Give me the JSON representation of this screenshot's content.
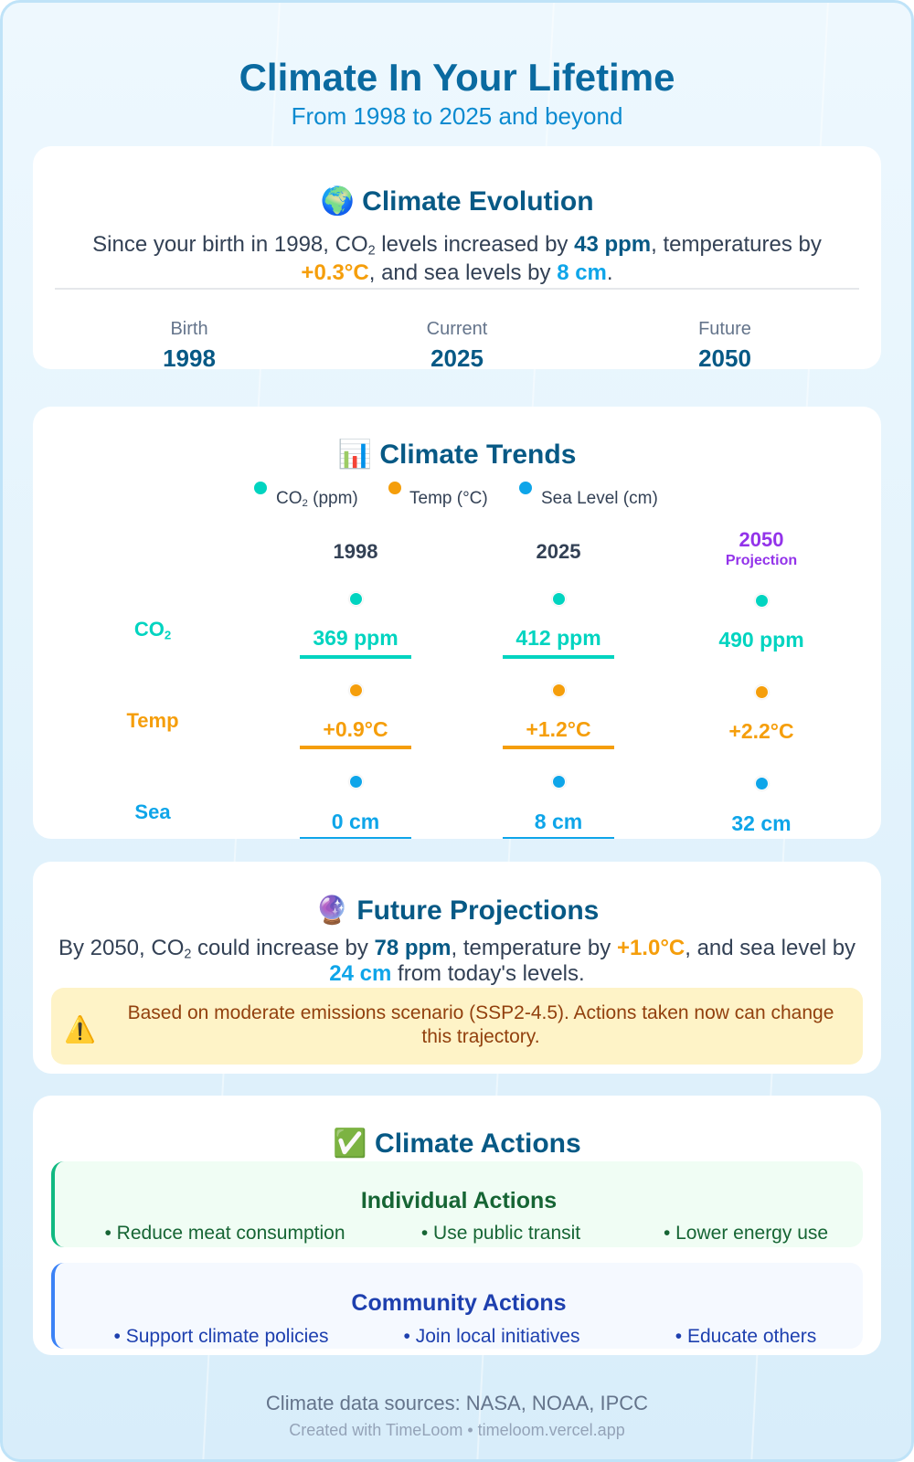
{
  "header": {
    "title": "Climate In Your Lifetime",
    "subtitle": "From 1998 to 2025 and beyond"
  },
  "evolution": {
    "icon": "globe-icon",
    "title": "Climate Evolution",
    "text_pre": "Since your birth in 1998, CO",
    "sub": "2",
    "text_mid1": " levels increased by ",
    "co2_delta": "43 ppm",
    "text_mid2": ", temperatures by ",
    "temp_delta": "+0.3°C",
    "text_mid3": ", and sea levels by ",
    "sea_delta": "8 cm",
    "text_end": ".",
    "milestones": [
      {
        "label": "Birth",
        "year": "1998"
      },
      {
        "label": "Current",
        "year": "2025"
      },
      {
        "label": "Future",
        "year": "2050"
      }
    ]
  },
  "trends": {
    "icon": "bar-chart-icon",
    "title": "Climate Trends",
    "legend": [
      {
        "label": "CO",
        "sub": "2",
        "suffix": " (ppm)",
        "color": "#00d4c0"
      },
      {
        "label": "Temp (°C)",
        "color": "#f59e0b"
      },
      {
        "label": "Sea Level (cm)",
        "color": "#0ea5e9"
      }
    ],
    "years": [
      "1998",
      "2025",
      "2050"
    ],
    "projection_label": "Projection",
    "rows": [
      {
        "label": "CO",
        "sub": "2",
        "color": "#00d4c0",
        "values": [
          "369 ppm",
          "412 ppm",
          "490 ppm"
        ]
      },
      {
        "label": "Temp",
        "color": "#f59e0b",
        "values": [
          "+0.9°C",
          "+1.2°C",
          "+2.2°C"
        ]
      },
      {
        "label": "Sea",
        "color": "#0ea5e9",
        "values": [
          "0 cm",
          "8 cm",
          "32 cm"
        ]
      }
    ],
    "projection_color": "#9333ea"
  },
  "projections": {
    "icon": "crystal-ball-icon",
    "title": "Future Projections",
    "text_pre": "By 2050, CO",
    "sub": "2",
    "text_mid1": " could increase by ",
    "co2_delta": "78 ppm",
    "text_mid2": ", temperature by ",
    "temp_delta": "+1.0°C",
    "text_mid3": ", and sea level by",
    "sea_delta": "24 cm",
    "text_end": " from today's levels.",
    "warning_icon": "warning-icon",
    "warning_line1": "Based on moderate emissions scenario (SSP2-4.5). Actions taken now can change",
    "warning_line2": "this trajectory."
  },
  "actions": {
    "icon": "check-mark-icon",
    "title": "Climate Actions",
    "individual": {
      "title": "Individual Actions",
      "items": [
        "• Reduce meat consumption",
        "• Use public transit",
        "• Lower energy use"
      ]
    },
    "community": {
      "title": "Community Actions",
      "items": [
        "• Support climate policies",
        "• Join local initiatives",
        "• Educate others"
      ]
    }
  },
  "footer": {
    "sources": "Climate data sources: NASA, NOAA, IPCC",
    "credit": "Created with TimeLoom • timeloom.vercel.app"
  }
}
